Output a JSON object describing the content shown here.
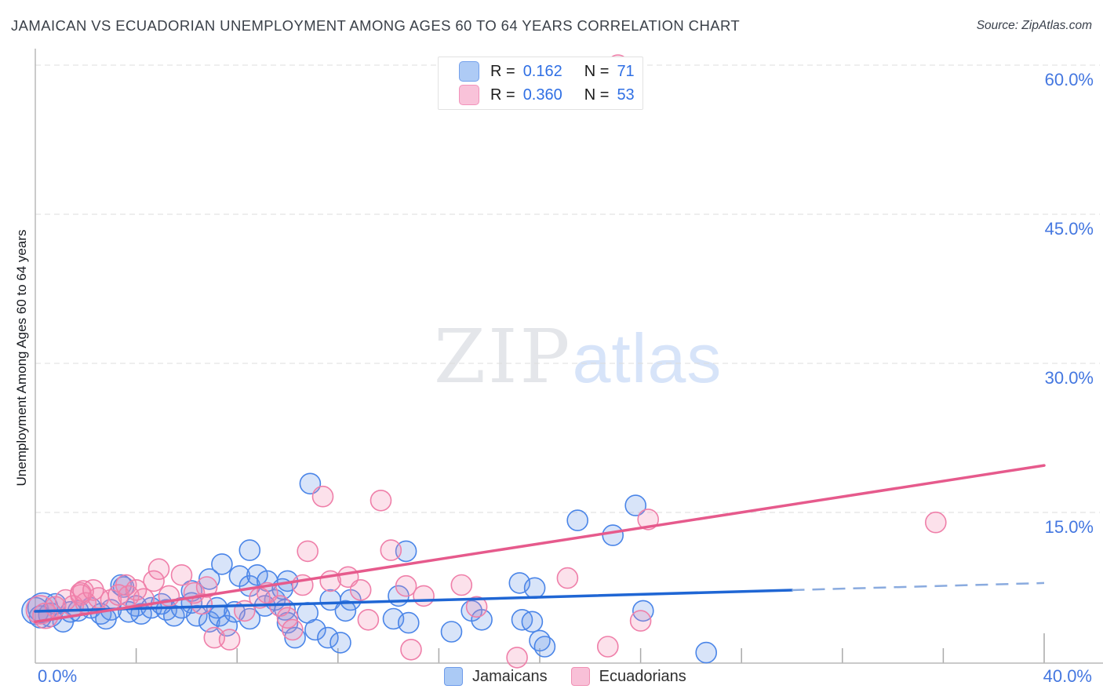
{
  "header": {
    "title": "JAMAICAN VS ECUADORIAN UNEMPLOYMENT AMONG AGES 60 TO 64 YEARS CORRELATION CHART",
    "source": "Source: ZipAtlas.com"
  },
  "watermark": {
    "zip": "ZIP",
    "atlas": "atlas"
  },
  "stats_legend": {
    "rows": [
      {
        "series": "Jamaicans",
        "r_label": "R =",
        "r_value": "0.162",
        "n_label": "N =",
        "n_value": "71"
      },
      {
        "series": "Ecuadorians",
        "r_label": "R =",
        "r_value": "0.360",
        "n_label": "N =",
        "n_value": "53"
      }
    ]
  },
  "bottom_legend": {
    "items": [
      {
        "label": "Jamaicans"
      },
      {
        "label": "Ecuadorians"
      }
    ]
  },
  "colors": {
    "jamaicans_stroke": "#4a85e8",
    "ecuadorians_stroke": "#ef7fa9",
    "jamaicans_trend": "#1f66d4",
    "ecuadorians_trend": "#e65a8c",
    "axis_label_blue": "#4477e0"
  },
  "chart_data": {
    "type": "scatter",
    "title": "Jamaican vs Ecuadorian Unemployment Among Ages 60 to 64 years",
    "xlabel": "",
    "ylabel": "Unemployment Among Ages 60 to 64 years",
    "xlim": [
      0,
      40
    ],
    "ylim": [
      0,
      63
    ],
    "x_axis": {
      "left_label": "0.0%",
      "right_label": "40.0%",
      "tick_step_pct": 4,
      "tick_count": 10
    },
    "y_axis": {
      "label": "Unemployment Among Ages 60 to 64 years",
      "ticks": [
        {
          "value": 60,
          "label": "60.0%"
        },
        {
          "value": 45,
          "label": "45.0%"
        },
        {
          "value": 30,
          "label": "30.0%"
        },
        {
          "value": 15,
          "label": "15.0%"
        }
      ]
    },
    "series": [
      {
        "name": "Jamaicans",
        "key": "jam",
        "R": 0.162,
        "N": 71,
        "points": [
          [
            0.0,
            5.1,
            17
          ],
          [
            0.3,
            5.4,
            19
          ],
          [
            0.6,
            4.7,
            15
          ],
          [
            1.1,
            4.0,
            13
          ],
          [
            1.4,
            5.0,
            13
          ],
          [
            2.2,
            5.4,
            13
          ],
          [
            2.6,
            4.8,
            13
          ],
          [
            3.0,
            5.2,
            13
          ],
          [
            3.4,
            7.7,
            13
          ],
          [
            4.0,
            5.6,
            13
          ],
          [
            4.2,
            4.8,
            13
          ],
          [
            4.6,
            5.4,
            13
          ],
          [
            5.2,
            5.2,
            13
          ],
          [
            5.5,
            4.6,
            13
          ],
          [
            6.2,
            5.9,
            13
          ],
          [
            6.4,
            4.6,
            13
          ],
          [
            6.9,
            4.0,
            13
          ],
          [
            7.3,
            4.6,
            13
          ],
          [
            7.6,
            3.6,
            13
          ],
          [
            8.1,
            8.6,
            13
          ],
          [
            8.5,
            7.6,
            13
          ],
          [
            8.8,
            8.7,
            13
          ],
          [
            9.2,
            8.1,
            13
          ],
          [
            9.5,
            6.2,
            13
          ],
          [
            9.9,
            5.2,
            13
          ],
          [
            8.5,
            11.2,
            13
          ],
          [
            10.9,
            17.9,
            13
          ],
          [
            6.2,
            7.1,
            13
          ],
          [
            6.9,
            8.3,
            13
          ],
          [
            7.4,
            9.8,
            13
          ],
          [
            3.5,
            7.5,
            13
          ],
          [
            10.0,
            8.1,
            13
          ],
          [
            11.7,
            6.2,
            13
          ],
          [
            12.5,
            6.2,
            13
          ],
          [
            10.8,
            4.9,
            13
          ],
          [
            12.3,
            5.1,
            13
          ],
          [
            10.0,
            3.9,
            13
          ],
          [
            11.1,
            3.2,
            13
          ],
          [
            11.6,
            2.4,
            13
          ],
          [
            10.3,
            2.4,
            13
          ],
          [
            12.1,
            1.9,
            13
          ],
          [
            8.5,
            4.3,
            13
          ],
          [
            14.4,
            6.6,
            13
          ],
          [
            14.7,
            11.1,
            13
          ],
          [
            14.2,
            4.3,
            13
          ],
          [
            14.8,
            3.9,
            13
          ],
          [
            16.5,
            3.0,
            13
          ],
          [
            17.3,
            5.1,
            13
          ],
          [
            17.7,
            4.2,
            13
          ],
          [
            19.2,
            7.9,
            13
          ],
          [
            19.8,
            7.4,
            13
          ],
          [
            19.3,
            4.2,
            13
          ],
          [
            19.7,
            4.0,
            13
          ],
          [
            20.0,
            2.1,
            13
          ],
          [
            20.2,
            1.5,
            13
          ],
          [
            21.5,
            14.2,
            13
          ],
          [
            22.9,
            12.7,
            13
          ],
          [
            23.8,
            15.7,
            13
          ],
          [
            24.1,
            5.1,
            13
          ],
          [
            26.6,
            0.9,
            13
          ],
          [
            0.2,
            4.5,
            14
          ],
          [
            0.8,
            5.8,
            13
          ],
          [
            1.7,
            5.1,
            13
          ],
          [
            2.8,
            4.3,
            13
          ],
          [
            3.7,
            5.0,
            13
          ],
          [
            5.0,
            5.8,
            13
          ],
          [
            5.8,
            5.4,
            13
          ],
          [
            7.2,
            5.4,
            13
          ],
          [
            7.9,
            5.0,
            13
          ],
          [
            9.1,
            5.6,
            13
          ],
          [
            9.8,
            7.3,
            13
          ]
        ],
        "trend": {
          "x1": 0,
          "y1": 5.05,
          "x2": 40,
          "y2": 7.9,
          "solid_until_x": 30
        }
      },
      {
        "name": "Ecuadorians",
        "key": "ecu",
        "R": 0.36,
        "N": 53,
        "points": [
          [
            0.2,
            5.2,
            18
          ],
          [
            0.4,
            4.6,
            16
          ],
          [
            0.8,
            5.5,
            13
          ],
          [
            1.5,
            5.6,
            13
          ],
          [
            1.8,
            6.7,
            13
          ],
          [
            2.0,
            5.9,
            13
          ],
          [
            2.5,
            6.4,
            13
          ],
          [
            3.0,
            6.2,
            13
          ],
          [
            1.9,
            7.1,
            13
          ],
          [
            3.6,
            7.7,
            13
          ],
          [
            3.7,
            6.6,
            13
          ],
          [
            4.3,
            6.3,
            13
          ],
          [
            4.9,
            9.3,
            13
          ],
          [
            5.8,
            8.7,
            13
          ],
          [
            6.3,
            6.9,
            13
          ],
          [
            6.6,
            5.8,
            13
          ],
          [
            7.1,
            2.4,
            13
          ],
          [
            7.7,
            2.2,
            13
          ],
          [
            8.3,
            5.1,
            13
          ],
          [
            9.2,
            6.9,
            13
          ],
          [
            10.0,
            4.4,
            13
          ],
          [
            10.2,
            3.2,
            13
          ],
          [
            1.8,
            6.9,
            13
          ],
          [
            2.3,
            7.2,
            13
          ],
          [
            10.8,
            11.1,
            13
          ],
          [
            11.4,
            16.6,
            13
          ],
          [
            9.7,
            5.6,
            13
          ],
          [
            4.7,
            8.1,
            13
          ],
          [
            5.3,
            6.6,
            13
          ],
          [
            13.7,
            16.2,
            13
          ],
          [
            14.1,
            11.2,
            13
          ],
          [
            14.7,
            7.6,
            13
          ],
          [
            14.9,
            1.2,
            13
          ],
          [
            17.5,
            5.5,
            13
          ],
          [
            19.1,
            0.4,
            13
          ],
          [
            21.1,
            8.4,
            13
          ],
          [
            22.7,
            1.5,
            13
          ],
          [
            24.0,
            4.1,
            13
          ],
          [
            24.3,
            14.3,
            13
          ],
          [
            23.1,
            60.0,
            13
          ],
          [
            35.7,
            14.0,
            13
          ],
          [
            1.2,
            6.2,
            13
          ],
          [
            3.3,
            6.7,
            13
          ],
          [
            4.0,
            7.2,
            13
          ],
          [
            6.8,
            7.5,
            13
          ],
          [
            8.9,
            6.4,
            13
          ],
          [
            10.6,
            7.7,
            13
          ],
          [
            11.7,
            8.1,
            13
          ],
          [
            12.4,
            8.5,
            13
          ],
          [
            12.9,
            7.2,
            13
          ],
          [
            13.2,
            4.2,
            13
          ],
          [
            15.4,
            6.6,
            13
          ],
          [
            16.9,
            7.7,
            13
          ]
        ],
        "trend": {
          "x1": 0,
          "y1": 4.0,
          "x2": 40,
          "y2": 19.73,
          "solid_until_x": 40
        }
      }
    ],
    "grid": true,
    "legend_position": "bottom"
  }
}
